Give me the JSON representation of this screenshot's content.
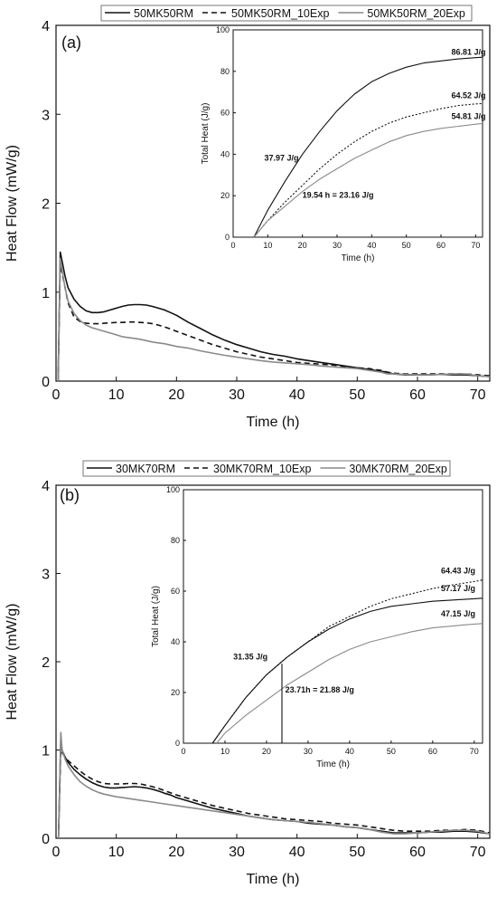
{
  "chart_data": [
    {
      "type": "line",
      "panel_label": "(a)",
      "xlabel": "Time (h)",
      "ylabel": "Heat Flow (mW/g)",
      "xlim": [
        0,
        72
      ],
      "ylim": [
        0,
        4
      ],
      "xticks": [
        0,
        10,
        20,
        30,
        40,
        50,
        60,
        70
      ],
      "yticks": [
        0,
        1,
        2,
        3,
        4
      ],
      "legend": "top",
      "series": [
        {
          "name": "50MK50RM",
          "style": "solid",
          "color": "#111111",
          "x": [
            0.35,
            0.7,
            1,
            1.5,
            2,
            3,
            4,
            5,
            6,
            7,
            8,
            9,
            10,
            11,
            12,
            13,
            14,
            15,
            16,
            17,
            18,
            19,
            20,
            22,
            24,
            26,
            28,
            30,
            32,
            34,
            36,
            38,
            40,
            42,
            44,
            46,
            48,
            50,
            52,
            54,
            55,
            56,
            58,
            60,
            62,
            64,
            66,
            68,
            70,
            72
          ],
          "y": [
            0,
            1.45,
            1.35,
            1.18,
            1.05,
            0.92,
            0.84,
            0.79,
            0.77,
            0.77,
            0.78,
            0.8,
            0.82,
            0.84,
            0.855,
            0.86,
            0.86,
            0.855,
            0.84,
            0.82,
            0.8,
            0.77,
            0.74,
            0.66,
            0.59,
            0.52,
            0.46,
            0.41,
            0.37,
            0.33,
            0.3,
            0.28,
            0.25,
            0.23,
            0.21,
            0.19,
            0.17,
            0.15,
            0.13,
            0.11,
            0.1,
            0.08,
            0.07,
            0.07,
            0.07,
            0.075,
            0.07,
            0.07,
            0.06,
            0.05
          ]
        },
        {
          "name": "50MK50RM_10Exp",
          "style": "dash",
          "color": "#111111",
          "x": [
            0.35,
            0.7,
            1,
            1.5,
            2,
            3,
            4,
            5,
            6,
            7,
            8,
            9,
            10,
            11,
            12,
            13,
            14,
            15,
            16,
            17,
            18,
            19,
            20,
            22,
            24,
            26,
            28,
            30,
            32,
            34,
            36,
            38,
            40,
            42,
            44,
            46,
            48,
            50,
            52,
            54,
            55,
            56,
            58,
            60,
            62,
            64,
            66,
            68,
            70,
            72
          ],
          "y": [
            0,
            1.3,
            1.22,
            1.05,
            0.88,
            0.72,
            0.67,
            0.65,
            0.645,
            0.645,
            0.65,
            0.655,
            0.66,
            0.66,
            0.665,
            0.665,
            0.66,
            0.655,
            0.645,
            0.63,
            0.61,
            0.585,
            0.56,
            0.51,
            0.46,
            0.41,
            0.37,
            0.33,
            0.3,
            0.27,
            0.25,
            0.23,
            0.21,
            0.2,
            0.19,
            0.18,
            0.16,
            0.15,
            0.14,
            0.12,
            0.1,
            0.09,
            0.08,
            0.08,
            0.08,
            0.08,
            0.08,
            0.08,
            0.07,
            0.06
          ]
        },
        {
          "name": "50MK50RM_20Exp",
          "style": "solid-gray",
          "color": "#8a8a8a",
          "x": [
            0.35,
            0.7,
            1,
            1.5,
            2,
            3,
            4,
            5,
            6,
            7,
            8,
            9,
            10,
            11,
            12,
            13,
            14,
            15,
            16,
            17,
            18,
            19,
            20,
            22,
            24,
            26,
            28,
            30,
            32,
            34,
            36,
            38,
            40,
            42,
            44,
            46,
            48,
            50,
            52,
            54,
            55,
            56,
            58,
            60,
            62,
            64,
            66,
            68,
            70,
            72
          ],
          "y": [
            0,
            1.38,
            1.25,
            1.05,
            0.9,
            0.76,
            0.68,
            0.63,
            0.6,
            0.58,
            0.56,
            0.54,
            0.52,
            0.5,
            0.49,
            0.48,
            0.47,
            0.455,
            0.44,
            0.43,
            0.42,
            0.405,
            0.39,
            0.37,
            0.34,
            0.315,
            0.29,
            0.27,
            0.25,
            0.23,
            0.215,
            0.205,
            0.195,
            0.185,
            0.17,
            0.16,
            0.15,
            0.14,
            0.12,
            0.1,
            0.08,
            0.08,
            0.075,
            0.07,
            0.07,
            0.075,
            0.08,
            0.08,
            0.06,
            0.05
          ]
        }
      ],
      "inset": {
        "ylabel": "Total Heat (J/g)",
        "xlabel": "Time (h)",
        "xlim": [
          0,
          72
        ],
        "ylim": [
          0,
          100
        ],
        "xticks": [
          0,
          10,
          20,
          30,
          40,
          50,
          60,
          70
        ],
        "yticks": [
          0,
          20,
          40,
          60,
          80,
          100
        ],
        "series": [
          {
            "name": "50MK50RM",
            "style": "solid",
            "color": "#111111",
            "x": [
              6,
              10,
              15,
              20,
              25,
              30,
              35,
              40,
              45,
              50,
              55,
              60,
              65,
              70,
              72
            ],
            "y": [
              0,
              13,
              27,
              40,
              51,
              61,
              69,
              75,
              79,
              82,
              84,
              85,
              86,
              86.6,
              86.8
            ]
          },
          {
            "name": "50MK50RM_10Exp",
            "style": "dot",
            "color": "#111111",
            "x": [
              6,
              10,
              15,
              20,
              25,
              30,
              35,
              40,
              45,
              50,
              55,
              60,
              65,
              70,
              72
            ],
            "y": [
              0,
              8,
              17,
              25,
              33,
              40,
              46,
              51,
              55,
              58,
              60,
              62,
              63.5,
              64.3,
              64.5
            ]
          },
          {
            "name": "50MK50RM_20Exp",
            "style": "solid-gray",
            "color": "#8a8a8a",
            "x": [
              6,
              10,
              15,
              20,
              25,
              30,
              35,
              40,
              45,
              50,
              55,
              60,
              65,
              70,
              72
            ],
            "y": [
              0,
              8,
              15,
              22,
              28,
              33,
              38,
              42,
              46,
              49,
              51,
              52.5,
              53.5,
              54.5,
              54.8
            ]
          }
        ],
        "annotations": [
          {
            "text": "86.81 J/g",
            "x": 63,
            "y": 88
          },
          {
            "text": "64.52 J/g",
            "x": 63,
            "y": 67
          },
          {
            "text": "54.81 J/g",
            "x": 63,
            "y": 57
          },
          {
            "text": "37.97 J/g",
            "x": 9,
            "y": 37
          },
          {
            "text": "19.54 h = 23.16 J/g",
            "x": 20,
            "y": 19
          }
        ]
      }
    },
    {
      "type": "line",
      "panel_label": "(b)",
      "xlabel": "Time (h)",
      "ylabel": "Heat Flow (mW/g)",
      "xlim": [
        0,
        72
      ],
      "ylim": [
        0,
        4
      ],
      "xticks": [
        0,
        10,
        20,
        30,
        40,
        50,
        60,
        70
      ],
      "yticks": [
        0,
        1,
        2,
        3,
        4
      ],
      "legend": "top",
      "series": [
        {
          "name": "30MK70RM",
          "style": "solid",
          "color": "#111111",
          "x": [
            0.4,
            0.8,
            1,
            1.5,
            2,
            3,
            4,
            5,
            6,
            7,
            8,
            9,
            10,
            11,
            12,
            13,
            14,
            15,
            16,
            17,
            18,
            19,
            20,
            22,
            24,
            26,
            28,
            30,
            32,
            34,
            36,
            38,
            40,
            42,
            44,
            46,
            48,
            50,
            52,
            54,
            56,
            58,
            60,
            62,
            64,
            66,
            68,
            70,
            72
          ],
          "y": [
            0,
            1.12,
            1.0,
            0.92,
            0.86,
            0.78,
            0.72,
            0.67,
            0.63,
            0.6,
            0.58,
            0.57,
            0.57,
            0.575,
            0.58,
            0.585,
            0.58,
            0.57,
            0.555,
            0.535,
            0.51,
            0.49,
            0.46,
            0.42,
            0.38,
            0.34,
            0.31,
            0.28,
            0.25,
            0.23,
            0.21,
            0.2,
            0.19,
            0.17,
            0.16,
            0.15,
            0.13,
            0.12,
            0.1,
            0.08,
            0.06,
            0.06,
            0.06,
            0.07,
            0.07,
            0.08,
            0.08,
            0.07,
            0.05
          ]
        },
        {
          "name": "30MK70RM_10Exp",
          "style": "dash",
          "color": "#111111",
          "x": [
            0.4,
            0.8,
            1,
            1.5,
            2,
            3,
            4,
            5,
            6,
            7,
            8,
            9,
            10,
            11,
            12,
            13,
            14,
            15,
            16,
            17,
            18,
            19,
            20,
            22,
            24,
            26,
            28,
            30,
            32,
            34,
            36,
            38,
            40,
            42,
            44,
            46,
            48,
            50,
            52,
            54,
            56,
            58,
            60,
            62,
            64,
            66,
            68,
            70,
            72
          ],
          "y": [
            0,
            1.05,
            0.97,
            0.92,
            0.88,
            0.82,
            0.76,
            0.71,
            0.67,
            0.64,
            0.62,
            0.615,
            0.615,
            0.615,
            0.62,
            0.62,
            0.615,
            0.6,
            0.585,
            0.565,
            0.54,
            0.515,
            0.49,
            0.45,
            0.41,
            0.37,
            0.34,
            0.31,
            0.28,
            0.26,
            0.24,
            0.22,
            0.21,
            0.2,
            0.19,
            0.17,
            0.16,
            0.15,
            0.13,
            0.11,
            0.09,
            0.08,
            0.08,
            0.08,
            0.09,
            0.09,
            0.1,
            0.09,
            0.06
          ]
        },
        {
          "name": "30MK70RM_20Exp",
          "style": "solid-gray",
          "color": "#8a8a8a",
          "x": [
            0.4,
            0.8,
            1,
            1.5,
            2,
            3,
            4,
            5,
            6,
            7,
            8,
            9,
            10,
            11,
            12,
            13,
            14,
            15,
            16,
            17,
            18,
            19,
            20,
            22,
            24,
            26,
            28,
            30,
            32,
            34,
            36,
            38,
            40,
            42,
            44,
            46,
            48,
            50,
            52,
            54,
            56,
            58,
            60,
            62,
            64,
            66,
            68,
            70,
            72
          ],
          "y": [
            0,
            1.2,
            1.0,
            0.9,
            0.82,
            0.72,
            0.64,
            0.59,
            0.55,
            0.52,
            0.5,
            0.485,
            0.47,
            0.46,
            0.45,
            0.44,
            0.43,
            0.42,
            0.41,
            0.4,
            0.39,
            0.38,
            0.37,
            0.35,
            0.33,
            0.31,
            0.29,
            0.27,
            0.25,
            0.23,
            0.21,
            0.2,
            0.19,
            0.18,
            0.165,
            0.15,
            0.13,
            0.12,
            0.1,
            0.07,
            0.05,
            0.05,
            0.06,
            0.07,
            0.08,
            0.09,
            0.09,
            0.08,
            0.05
          ]
        }
      ],
      "inset": {
        "ylabel": "Total Heat (J/g)",
        "xlabel": "Time (h)",
        "xlim": [
          0,
          72
        ],
        "ylim": [
          0,
          100
        ],
        "xticks": [
          0,
          10,
          20,
          30,
          40,
          50,
          60,
          70
        ],
        "yticks": [
          0,
          20,
          40,
          60,
          80,
          100
        ],
        "series": [
          {
            "name": "30MK70RM",
            "style": "solid",
            "color": "#111111",
            "x": [
              7,
              10,
              15,
              20,
              25,
              30,
              35,
              40,
              45,
              50,
              55,
              60,
              65,
              70,
              72
            ],
            "y": [
              0,
              7,
              18,
              27,
              34,
              40,
              45,
              49,
              52,
              54,
              55,
              56,
              56.5,
              57,
              57.2
            ]
          },
          {
            "name": "30MK70RM_10Exp",
            "style": "dot",
            "color": "#111111",
            "x": [
              7,
              10,
              15,
              20,
              25,
              30,
              35,
              40,
              45,
              50,
              55,
              60,
              65,
              70,
              72
            ],
            "y": [
              0,
              7,
              18,
              27,
              34,
              40,
              46,
              50,
              54,
              57,
              59,
              61,
              62.5,
              63.8,
              64.4
            ]
          },
          {
            "name": "30MK70RM_20Exp",
            "style": "solid-gray",
            "color": "#8a8a8a",
            "x": [
              8,
              10,
              15,
              20,
              25,
              30,
              35,
              40,
              45,
              50,
              55,
              60,
              65,
              70,
              72
            ],
            "y": [
              0,
              4,
              11,
              17,
              23,
              28,
              33,
              37,
              40,
              42,
              44,
              45.5,
              46.3,
              47,
              47.2
            ]
          }
        ],
        "annotations": [
          {
            "text": "64.43 J/g",
            "x": 62,
            "y": 67
          },
          {
            "text": "57.17 J/g",
            "x": 62,
            "y": 60
          },
          {
            "text": "47.15 J/g",
            "x": 62,
            "y": 50
          },
          {
            "text": "31.35 J/g",
            "x": 12,
            "y": 33
          },
          {
            "text": "23.71h = 21.88 J/g",
            "x": 24.5,
            "y": 20
          }
        ],
        "markers": [
          {
            "x": 23.71,
            "ymax": 31.35
          }
        ]
      }
    }
  ]
}
